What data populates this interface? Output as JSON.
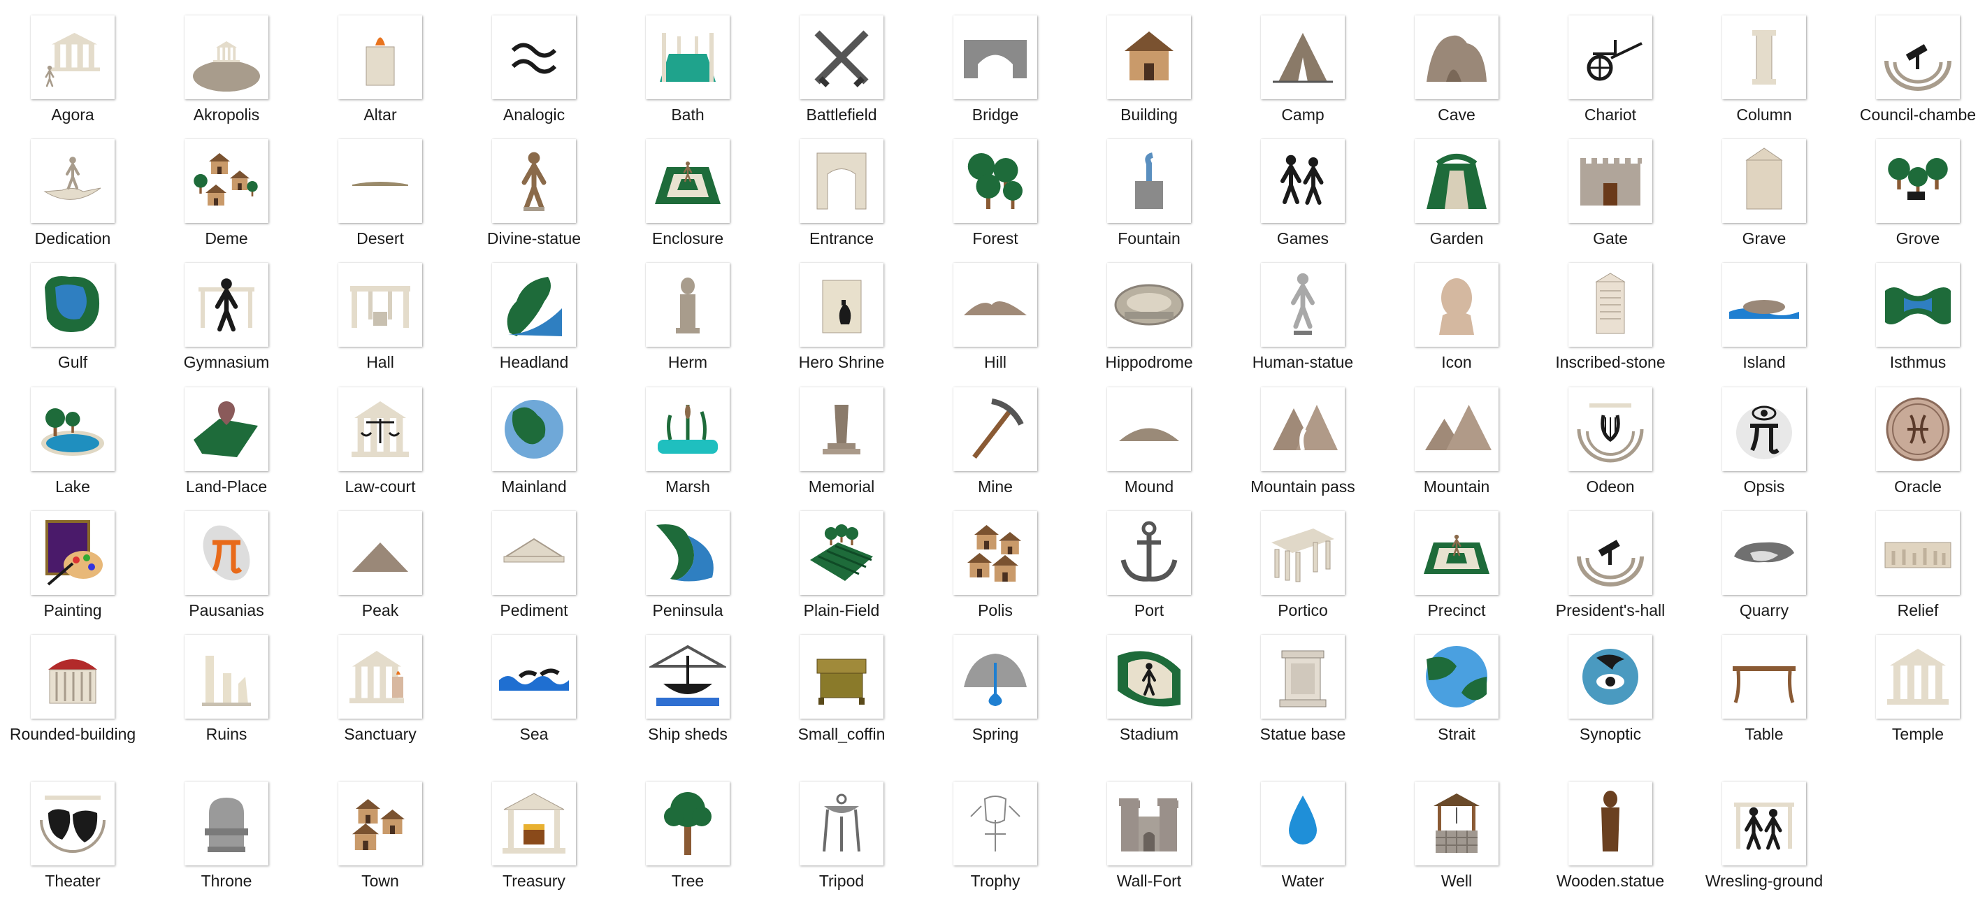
{
  "rows": [
    {
      "items": [
        {
          "label": "Agora",
          "icon": "agora-icon"
        },
        {
          "label": "Akropolis",
          "icon": "akropolis-icon"
        },
        {
          "label": "Altar",
          "icon": "altar-icon"
        },
        {
          "label": "Analogic",
          "icon": "analogic-icon"
        },
        {
          "label": "Bath",
          "icon": "bath-icon"
        },
        {
          "label": "Battlefield",
          "icon": "battlefield-icon"
        },
        {
          "label": "Bridge",
          "icon": "bridge-icon"
        },
        {
          "label": "Building",
          "icon": "building-icon"
        },
        {
          "label": "Camp",
          "icon": "camp-icon"
        },
        {
          "label": "Cave",
          "icon": "cave-icon"
        },
        {
          "label": "Chariot",
          "icon": "chariot-icon"
        },
        {
          "label": "Column",
          "icon": "column-icon"
        },
        {
          "label": "Council-chambe",
          "icon": "council-chamber-icon"
        }
      ]
    },
    {
      "items": [
        {
          "label": "Dedication",
          "icon": "dedication-icon"
        },
        {
          "label": "Deme",
          "icon": "deme-icon"
        },
        {
          "label": "Desert",
          "icon": "desert-icon"
        },
        {
          "label": "Divine-statue",
          "icon": "divine-statue-icon"
        },
        {
          "label": "Enclosure",
          "icon": "enclosure-icon"
        },
        {
          "label": "Entrance",
          "icon": "entrance-icon"
        },
        {
          "label": "Forest",
          "icon": "forest-icon"
        },
        {
          "label": "Fountain",
          "icon": "fountain-icon"
        },
        {
          "label": "Games",
          "icon": "games-icon"
        },
        {
          "label": "Garden",
          "icon": "garden-icon"
        },
        {
          "label": "Gate",
          "icon": "gate-icon"
        },
        {
          "label": "Grave",
          "icon": "grave-icon"
        },
        {
          "label": "Grove",
          "icon": "grove-icon"
        }
      ]
    },
    {
      "items": [
        {
          "label": "Gulf",
          "icon": "gulf-icon"
        },
        {
          "label": "Gymnasium",
          "icon": "gymnasium-icon"
        },
        {
          "label": "Hall",
          "icon": "hall-icon"
        },
        {
          "label": "Headland",
          "icon": "headland-icon"
        },
        {
          "label": "Herm",
          "icon": "herm-icon"
        },
        {
          "label": "Hero Shrine",
          "icon": "hero-shrine-icon"
        },
        {
          "label": "Hill",
          "icon": "hill-icon"
        },
        {
          "label": "Hippodrome",
          "icon": "hippodrome-icon"
        },
        {
          "label": "Human-statue",
          "icon": "human-statue-icon"
        },
        {
          "label": "Icon",
          "icon": "icon-bust-icon"
        },
        {
          "label": "Inscribed-stone",
          "icon": "inscribed-stone-icon"
        },
        {
          "label": "Island",
          "icon": "island-icon"
        },
        {
          "label": "Isthmus",
          "icon": "isthmus-icon"
        }
      ]
    },
    {
      "items": [
        {
          "label": "Lake",
          "icon": "lake-icon"
        },
        {
          "label": "Land-Place",
          "icon": "land-place-icon"
        },
        {
          "label": "Law-court",
          "icon": "law-court-icon"
        },
        {
          "label": "Mainland",
          "icon": "mainland-icon"
        },
        {
          "label": "Marsh",
          "icon": "marsh-icon"
        },
        {
          "label": "Memorial",
          "icon": "memorial-icon"
        },
        {
          "label": "Mine",
          "icon": "mine-icon"
        },
        {
          "label": "Mound",
          "icon": "mound-icon"
        },
        {
          "label": "Mountain pass",
          "icon": "mountain-pass-icon"
        },
        {
          "label": "Mountain",
          "icon": "mountain-icon"
        },
        {
          "label": "Odeon",
          "icon": "odeon-icon"
        },
        {
          "label": "Opsis",
          "icon": "opsis-icon"
        },
        {
          "label": "Oracle",
          "icon": "oracle-icon"
        }
      ]
    },
    {
      "items": [
        {
          "label": "Painting",
          "icon": "painting-icon"
        },
        {
          "label": "Pausanias",
          "icon": "pausanias-icon"
        },
        {
          "label": "Peak",
          "icon": "peak-icon"
        },
        {
          "label": "Pediment",
          "icon": "pediment-icon"
        },
        {
          "label": "Peninsula",
          "icon": "peninsula-icon"
        },
        {
          "label": "Plain-Field",
          "icon": "plain-field-icon"
        },
        {
          "label": "Polis",
          "icon": "polis-icon"
        },
        {
          "label": "Port",
          "icon": "port-icon"
        },
        {
          "label": "Portico",
          "icon": "portico-icon"
        },
        {
          "label": "Precinct",
          "icon": "precinct-icon"
        },
        {
          "label": "President's-hall",
          "icon": "presidents-hall-icon"
        },
        {
          "label": "Quarry",
          "icon": "quarry-icon"
        },
        {
          "label": "Relief",
          "icon": "relief-icon"
        }
      ]
    },
    {
      "items": [
        {
          "label": "Rounded-building",
          "icon": "rounded-building-icon"
        },
        {
          "label": "Ruins",
          "icon": "ruins-icon"
        },
        {
          "label": "Sanctuary",
          "icon": "sanctuary-icon"
        },
        {
          "label": "Sea",
          "icon": "sea-icon"
        },
        {
          "label": "Ship sheds",
          "icon": "ship-sheds-icon"
        },
        {
          "label": "Small_coffin",
          "icon": "small-coffin-icon"
        },
        {
          "label": "Spring",
          "icon": "spring-icon"
        },
        {
          "label": "Stadium",
          "icon": "stadium-icon"
        },
        {
          "label": "Statue base",
          "icon": "statue-base-icon"
        },
        {
          "label": "Strait",
          "icon": "strait-icon"
        },
        {
          "label": "Synoptic",
          "icon": "synoptic-icon"
        },
        {
          "label": "Table",
          "icon": "table-icon"
        },
        {
          "label": "Temple",
          "icon": "temple-icon"
        }
      ]
    },
    {
      "items": [
        {
          "label": "Theater",
          "icon": "theater-icon"
        },
        {
          "label": "Throne",
          "icon": "throne-icon"
        },
        {
          "label": "Town",
          "icon": "town-icon"
        },
        {
          "label": "Treasury",
          "icon": "treasury-icon"
        },
        {
          "label": "Tree",
          "icon": "tree-icon"
        },
        {
          "label": "Tripod",
          "icon": "tripod-icon"
        },
        {
          "label": "Trophy",
          "icon": "trophy-icon"
        },
        {
          "label": "Wall-Fort",
          "icon": "wall-fort-icon"
        },
        {
          "label": "Water",
          "icon": "water-icon"
        },
        {
          "label": "Well",
          "icon": "well-icon"
        },
        {
          "label": "Wooden.statue",
          "icon": "wooden-statue-icon"
        },
        {
          "label": "Wresling-ground",
          "icon": "wresling-ground-icon"
        }
      ]
    }
  ],
  "colors": {
    "stone": "#a89c8c",
    "sand": "#e4dccb",
    "green": "#1e6b3a",
    "water": "#2f7fc1",
    "dark": "#1a1a1a",
    "wood": "#8a5a34",
    "fire": "#e8731e"
  }
}
